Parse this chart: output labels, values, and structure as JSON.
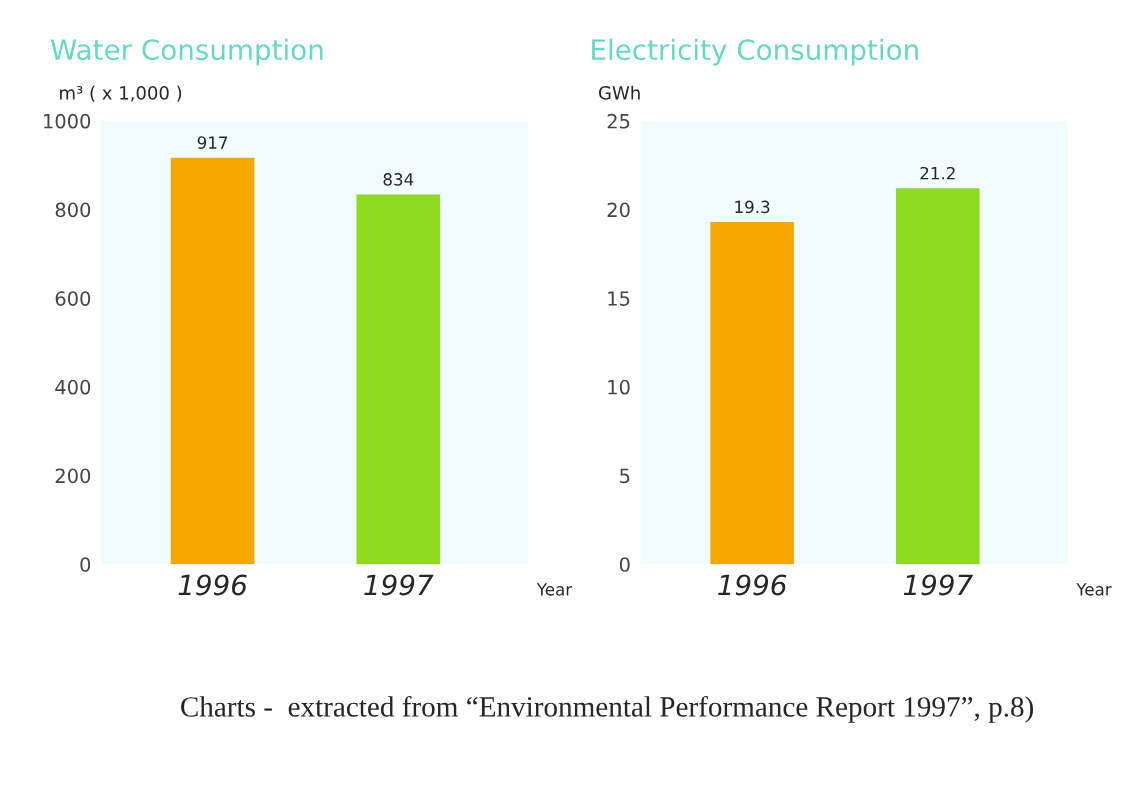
{
  "chart_data": [
    {
      "type": "bar",
      "title": "Water Consumption",
      "ylabel": "m³ ( x 1,000 )",
      "xlabel": "Year",
      "categories": [
        "1996",
        "1997"
      ],
      "values": [
        917,
        834
      ],
      "colors": [
        "#f7a800",
        "#8fdc1e"
      ],
      "ylim": [
        0,
        1000
      ],
      "yticks": [
        0,
        200,
        400,
        600,
        800,
        1000
      ],
      "data_labels": true,
      "grid": false,
      "annotations": [
        "Charts -  extracted from “Environmental Performance Report 1997”, p.8)"
      ]
    },
    {
      "type": "bar",
      "title": "Electricity Consumption",
      "ylabel": "GWh",
      "xlabel": "Year",
      "categories": [
        "1996",
        "1997"
      ],
      "values": [
        19.3,
        21.2
      ],
      "colors": [
        "#f7a800",
        "#8fdc1e"
      ],
      "ylim": [
        0,
        25
      ],
      "yticks": [
        0,
        5,
        10,
        15,
        20,
        25
      ],
      "data_labels": true,
      "grid": false
    }
  ]
}
